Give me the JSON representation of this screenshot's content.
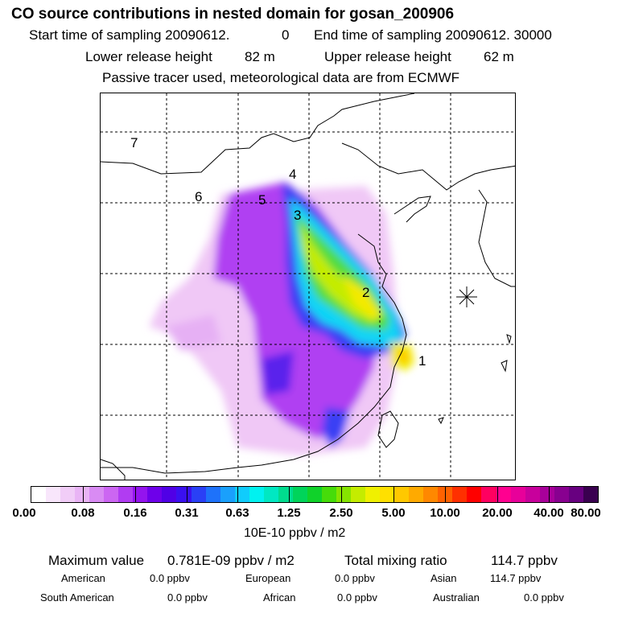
{
  "header": {
    "title": "CO  source contributions in nested domain for gosan_200906",
    "start_label": "Start time of sampling 20090612.",
    "start_value": "0",
    "end_label": "End time of sampling 20090612. 30000",
    "lower_label": "Lower release height",
    "lower_value": "82 m",
    "upper_label": "Upper release height",
    "upper_value": "62 m",
    "tracer_line": "Passive tracer used, meteorological data are from ECMWF"
  },
  "map": {
    "source_labels": [
      "1",
      "2",
      "3",
      "4",
      "5",
      "6",
      "7"
    ],
    "receptor_marker": "gosan-receptor"
  },
  "colorbar": {
    "unit": "10E-10 ppbv / m2",
    "tick_labels": [
      "0.00",
      "0.08",
      "0.16",
      "0.31",
      "0.63",
      "1.25",
      "2.50",
      "5.00",
      "10.00",
      "20.00",
      "40.00",
      "80.00"
    ],
    "colors": [
      "#ffffff",
      "#f8e6fb",
      "#f1cdf7",
      "#e9b4f5",
      "#d98bf3",
      "#cc66f2",
      "#b13cf2",
      "#9414ee",
      "#6e00ea",
      "#5000e6",
      "#3a10f0",
      "#2a40f6",
      "#1e72fa",
      "#1aa0fc",
      "#10ccfc",
      "#00f2f0",
      "#00e8c2",
      "#00dc8e",
      "#00d45a",
      "#10d22a",
      "#46dc0a",
      "#86e400",
      "#c4ec00",
      "#f0f000",
      "#ffe000",
      "#ffc800",
      "#ffaa00",
      "#ff8800",
      "#ff6200",
      "#ff3000",
      "#ff0000",
      "#ff0060",
      "#ff0090",
      "#e8009a",
      "#c8009c",
      "#a8009a",
      "#880090",
      "#680080",
      "#3a0050"
    ]
  },
  "footer": {
    "max_label": "Maximum value",
    "max_value": "0.781E-09 ppbv / m2",
    "total_label": "Total mixing ratio",
    "total_value": "114.7 ppbv",
    "regions": [
      {
        "name": "American",
        "value": "0.0 ppbv"
      },
      {
        "name": "European",
        "value": "0.0 ppbv"
      },
      {
        "name": "Asian",
        "value": "114.7 ppbv"
      },
      {
        "name": "South American",
        "value": "0.0 ppbv"
      },
      {
        "name": "African",
        "value": "0.0 ppbv"
      },
      {
        "name": "Australian",
        "value": "0.0 ppbv"
      }
    ]
  }
}
